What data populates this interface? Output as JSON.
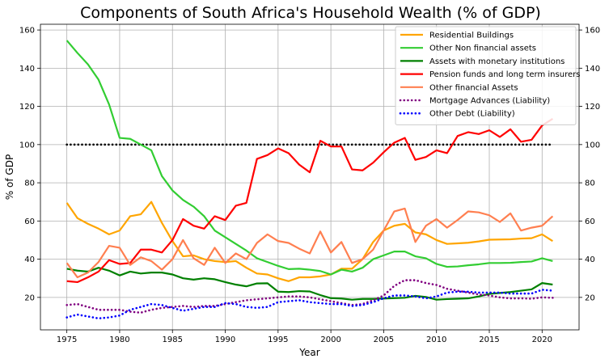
{
  "chart_data": {
    "type": "line",
    "title": "Components of South Africa's Household Wealth (% of GDP)",
    "xlabel": "Year",
    "ylabel": "% of GDP",
    "xlim": [
      1972.5,
      2023.5
    ],
    "ylim": [
      3,
      163
    ],
    "x_ticks": [
      1975,
      1980,
      1985,
      1990,
      1995,
      2000,
      2005,
      2010,
      2015,
      2020
    ],
    "y_ticks": [
      20,
      40,
      60,
      80,
      100,
      120,
      140,
      160
    ],
    "grid": true,
    "legend_position": "top-right",
    "secondary_y_axis": true,
    "reference_line": {
      "y": 100,
      "x_range": [
        1975,
        2021
      ],
      "color": "#000000"
    },
    "x": [
      1975,
      1976,
      1977,
      1978,
      1979,
      1980,
      1981,
      1982,
      1983,
      1984,
      1985,
      1986,
      1987,
      1988,
      1989,
      1990,
      1991,
      1992,
      1993,
      1994,
      1995,
      1996,
      1997,
      1998,
      1999,
      2000,
      2001,
      2002,
      2003,
      2004,
      2005,
      2006,
      2007,
      2008,
      2009,
      2010,
      2011,
      2012,
      2013,
      2014,
      2015,
      2016,
      2017,
      2018,
      2019,
      2020,
      2021
    ],
    "series": [
      {
        "name": "Residential Buildings",
        "color": "#FFA500",
        "style": "solid",
        "values": [
          69.5,
          61.5,
          58.5,
          56,
          53,
          55,
          62.5,
          63.5,
          70,
          59,
          49.5,
          41.5,
          42,
          40,
          39,
          38.5,
          39,
          35.5,
          32.5,
          32,
          30,
          28.5,
          30.5,
          30.5,
          31,
          32,
          35,
          35,
          40,
          49,
          55,
          57.5,
          58.5,
          54,
          53,
          50,
          48,
          48.3,
          48.6,
          49.3,
          50.2,
          50.3,
          50.4,
          50.8,
          51,
          53,
          49.5
        ]
      },
      {
        "name": "Other Non financial assets",
        "color": "#32CD32",
        "style": "solid",
        "values": [
          154.5,
          148,
          142,
          134,
          121,
          103.5,
          103,
          100,
          97,
          83.5,
          76,
          71,
          67.5,
          62.5,
          55,
          51.5,
          48,
          44.5,
          40.5,
          38.5,
          36.5,
          34.8,
          35,
          34.5,
          33.8,
          32,
          34.5,
          33.5,
          35.5,
          40,
          42,
          44,
          44,
          41.5,
          40.5,
          37.5,
          36,
          36.2,
          36.8,
          37.3,
          38,
          38,
          38.1,
          38.5,
          38.8,
          40.5,
          39
        ]
      },
      {
        "name": "Assets with monetary institutions",
        "color": "#008000",
        "style": "solid",
        "values": [
          35,
          34,
          33.5,
          35.5,
          34,
          31.5,
          33.5,
          32.5,
          33,
          33,
          32,
          30,
          29.3,
          30,
          29.5,
          28,
          26.7,
          25.8,
          27.3,
          27.4,
          23,
          22.8,
          23.3,
          23.1,
          21.2,
          19.6,
          19.4,
          18.8,
          19.2,
          19.2,
          19.4,
          19.6,
          19.8,
          20.8,
          20.2,
          18.8,
          19.1,
          19.3,
          19.5,
          20.5,
          21.8,
          22.3,
          22.8,
          23.5,
          24.2,
          27.5,
          26.7
        ]
      },
      {
        "name": "Pension funds and long term insurers",
        "color": "#FF0000",
        "style": "solid",
        "values": [
          28.5,
          28,
          30.5,
          33.5,
          39.5,
          37.5,
          38,
          45,
          45,
          43.5,
          50,
          61,
          57.5,
          56,
          62.5,
          60.5,
          68,
          69.5,
          92.5,
          94.5,
          98,
          95.5,
          89.5,
          85.5,
          102,
          99,
          99,
          87,
          86.5,
          90.5,
          96,
          101,
          103.5,
          92,
          93.5,
          97,
          95.5,
          104.5,
          106.5,
          105.5,
          107.5,
          104,
          108,
          101.5,
          102.5,
          110,
          113.5
        ]
      },
      {
        "name": "Other financial Assets",
        "color": "#FF7F50",
        "style": "solid",
        "values": [
          38,
          30.5,
          33,
          38.5,
          47,
          46,
          37,
          41,
          39,
          34.5,
          40,
          50,
          40.5,
          37,
          46,
          38,
          43,
          40,
          48.5,
          53,
          49.5,
          48.5,
          45.5,
          43,
          54.5,
          43.5,
          49,
          38,
          40,
          45,
          55,
          65,
          66.5,
          49,
          57.5,
          61,
          56.5,
          60.5,
          65,
          64.5,
          63,
          59.5,
          64,
          55,
          56.5,
          57.5,
          62.5
        ]
      },
      {
        "name": "Mortgage Advances (Liability)",
        "color": "#800080",
        "style": "dotted",
        "values": [
          16,
          16.5,
          15,
          13.5,
          13.5,
          13.5,
          12.5,
          12,
          13.5,
          14.5,
          15,
          15.5,
          15,
          15.5,
          15.5,
          16.5,
          17.5,
          18.5,
          19,
          19.5,
          20,
          20.5,
          20.5,
          20,
          19,
          18,
          17,
          16,
          16.5,
          18.5,
          21,
          26,
          29,
          29,
          27.5,
          26.5,
          24.5,
          23.5,
          22.5,
          21.5,
          21,
          20,
          19.5,
          19.5,
          19.3,
          20,
          19.8
        ]
      },
      {
        "name": "Other Debt (Liability)",
        "color": "#0000FF",
        "style": "dotted",
        "values": [
          9.5,
          11,
          10,
          9,
          9.5,
          10.5,
          13.5,
          15,
          16.5,
          16,
          14.5,
          13,
          14,
          15,
          15,
          17,
          16.5,
          15,
          14.5,
          15,
          17.5,
          18,
          18.5,
          17.5,
          17,
          16.5,
          16.5,
          15.5,
          16,
          17.5,
          19.5,
          21,
          21,
          20.5,
          19.5,
          20.5,
          22.5,
          23,
          23,
          22.5,
          22.5,
          22.5,
          22,
          22,
          22,
          24,
          23.5
        ]
      }
    ]
  }
}
